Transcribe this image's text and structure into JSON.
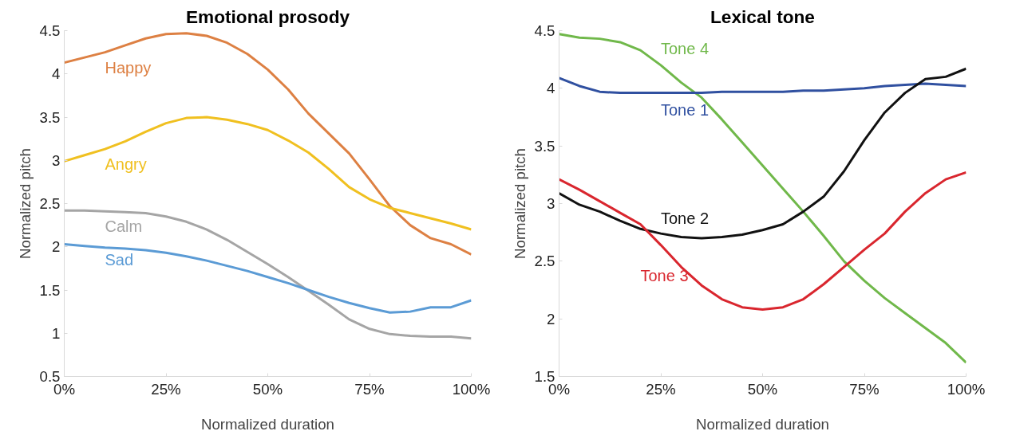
{
  "chart_data": [
    {
      "type": "line",
      "title": "Emotional prosody",
      "xlabel": "Normalized duration",
      "ylabel": "Normalized pitch",
      "x": [
        0,
        5,
        10,
        15,
        20,
        25,
        30,
        35,
        40,
        45,
        50,
        55,
        60,
        65,
        70,
        75,
        80,
        85,
        90,
        95,
        100
      ],
      "xlim": [
        0,
        100
      ],
      "xticks": [
        {
          "value": 0,
          "label": "0%"
        },
        {
          "value": 25,
          "label": "25%"
        },
        {
          "value": 50,
          "label": "50%"
        },
        {
          "value": 75,
          "label": "75%"
        },
        {
          "value": 100,
          "label": "100%"
        }
      ],
      "ylim": [
        0.5,
        4.5
      ],
      "yticks": [
        0.5,
        1,
        1.5,
        2,
        2.5,
        3,
        3.5,
        4,
        4.5
      ],
      "grid": false,
      "line_style": "solid",
      "series": [
        {
          "name": "Happy",
          "color": "#dd8043",
          "values": [
            4.13,
            4.19,
            4.25,
            4.33,
            4.41,
            4.46,
            4.47,
            4.44,
            4.36,
            4.23,
            4.05,
            3.82,
            3.54,
            3.31,
            3.08,
            2.78,
            2.47,
            2.25,
            2.1,
            2.03,
            1.91
          ]
        },
        {
          "name": "Angry",
          "color": "#f0c020",
          "values": [
            2.99,
            3.06,
            3.13,
            3.22,
            3.33,
            3.43,
            3.49,
            3.5,
            3.47,
            3.42,
            3.35,
            3.23,
            3.09,
            2.9,
            2.69,
            2.55,
            2.45,
            2.39,
            2.33,
            2.27,
            2.2
          ]
        },
        {
          "name": "Calm",
          "color": "#a5a5a5",
          "values": [
            2.42,
            2.42,
            2.41,
            2.4,
            2.39,
            2.35,
            2.29,
            2.2,
            2.08,
            1.94,
            1.8,
            1.65,
            1.49,
            1.33,
            1.16,
            1.05,
            0.99,
            0.97,
            0.96,
            0.96,
            0.94
          ]
        },
        {
          "name": "Sad",
          "color": "#5b9bd5",
          "values": [
            2.03,
            2.01,
            1.99,
            1.98,
            1.96,
            1.93,
            1.89,
            1.84,
            1.78,
            1.72,
            1.65,
            1.58,
            1.5,
            1.42,
            1.35,
            1.29,
            1.24,
            1.25,
            1.3,
            1.3,
            1.38
          ]
        }
      ]
    },
    {
      "type": "line",
      "title": "Lexical tone",
      "xlabel": "Normalized duration",
      "ylabel": "Normalized pitch",
      "x": [
        0,
        5,
        10,
        15,
        20,
        25,
        30,
        35,
        40,
        45,
        50,
        55,
        60,
        65,
        70,
        75,
        80,
        85,
        90,
        95,
        100
      ],
      "xlim": [
        0,
        100
      ],
      "xticks": [
        {
          "value": 0,
          "label": "0%"
        },
        {
          "value": 25,
          "label": "25%"
        },
        {
          "value": 50,
          "label": "50%"
        },
        {
          "value": 75,
          "label": "75%"
        },
        {
          "value": 100,
          "label": "100%"
        }
      ],
      "ylim": [
        1.5,
        4.5
      ],
      "yticks": [
        1.5,
        2,
        2.5,
        3,
        3.5,
        4,
        4.5
      ],
      "grid": false,
      "line_style": "solid",
      "series": [
        {
          "name": "Tone 4",
          "color": "#70b84a",
          "values": [
            4.47,
            4.44,
            4.43,
            4.4,
            4.33,
            4.2,
            4.05,
            3.92,
            3.73,
            3.53,
            3.33,
            3.13,
            2.93,
            2.72,
            2.5,
            2.33,
            2.18,
            2.05,
            1.92,
            1.79,
            1.62
          ]
        },
        {
          "name": "Tone 1",
          "color": "#3050a0",
          "values": [
            4.09,
            4.02,
            3.97,
            3.96,
            3.96,
            3.96,
            3.96,
            3.96,
            3.97,
            3.97,
            3.97,
            3.97,
            3.98,
            3.98,
            3.99,
            4.0,
            4.02,
            4.03,
            4.04,
            4.03,
            4.02
          ]
        },
        {
          "name": "Tone 2",
          "color": "#111111",
          "values": [
            3.09,
            2.99,
            2.93,
            2.85,
            2.78,
            2.74,
            2.71,
            2.7,
            2.71,
            2.73,
            2.77,
            2.82,
            2.93,
            3.06,
            3.28,
            3.55,
            3.79,
            3.96,
            4.08,
            4.1,
            4.17
          ]
        },
        {
          "name": "Tone 3",
          "color": "#d9262e",
          "values": [
            3.21,
            3.12,
            3.02,
            2.92,
            2.82,
            2.64,
            2.45,
            2.29,
            2.17,
            2.1,
            2.08,
            2.1,
            2.17,
            2.3,
            2.45,
            2.6,
            2.74,
            2.93,
            3.09,
            3.21,
            3.27
          ]
        }
      ]
    }
  ]
}
